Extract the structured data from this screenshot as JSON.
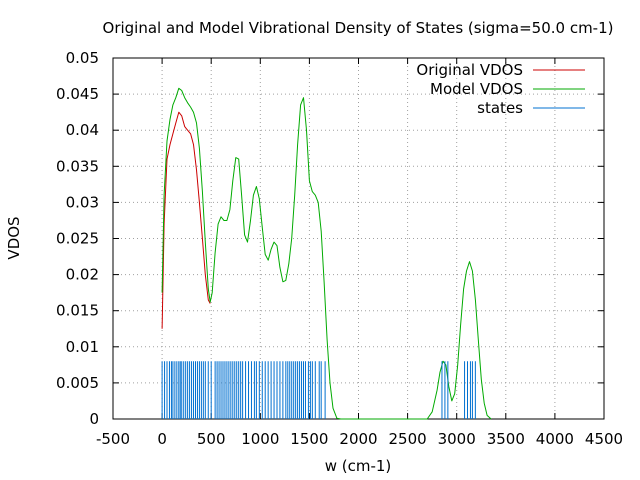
{
  "chart_data": {
    "type": "line",
    "title": "Original and Model Vibrational Density of States (sigma=50.0 cm-1)",
    "xlabel": "w (cm-1)",
    "ylabel": "VDOS",
    "xlim": [
      -500,
      4500
    ],
    "ylim": [
      0,
      0.05
    ],
    "x_ticks": [
      -500,
      0,
      500,
      1000,
      1500,
      2000,
      2500,
      3000,
      3500,
      4000,
      4500
    ],
    "x_tick_labels": [
      "-500",
      "0",
      "500",
      "1000",
      "1500",
      "2000",
      "2500",
      "3000",
      "3500",
      "4000",
      "4500"
    ],
    "y_ticks": [
      0,
      0.005,
      0.01,
      0.015,
      0.02,
      0.025,
      0.03,
      0.035,
      0.04,
      0.045,
      0.05
    ],
    "y_tick_labels": [
      "0",
      "0.005",
      "0.01",
      "0.015",
      "0.02",
      "0.025",
      "0.03",
      "0.035",
      "0.04",
      "0.045",
      "0.05"
    ],
    "grid": true,
    "legend_position": "top-right",
    "series": [
      {
        "name": "Original VDOS",
        "color": "#cc0000",
        "x": [
          0,
          20,
          50,
          80,
          110,
          140,
          170,
          200,
          230,
          260,
          290,
          320,
          350,
          380,
          410,
          440,
          470,
          490
        ],
        "y": [
          0.0125,
          0.027,
          0.036,
          0.038,
          0.0395,
          0.041,
          0.0425,
          0.042,
          0.0405,
          0.04,
          0.0395,
          0.038,
          0.0345,
          0.03,
          0.025,
          0.02,
          0.0165,
          0.016
        ]
      },
      {
        "name": "Model VDOS",
        "color": "#00aa00",
        "x": [
          0,
          20,
          50,
          80,
          110,
          140,
          170,
          200,
          230,
          260,
          290,
          320,
          350,
          380,
          410,
          440,
          470,
          490,
          510,
          540,
          570,
          600,
          630,
          660,
          690,
          720,
          750,
          780,
          810,
          840,
          870,
          900,
          930,
          960,
          990,
          1020,
          1050,
          1080,
          1110,
          1140,
          1170,
          1200,
          1230,
          1260,
          1290,
          1320,
          1350,
          1380,
          1410,
          1440,
          1470,
          1500,
          1530,
          1560,
          1590,
          1620,
          1650,
          1680,
          1710,
          1740,
          1780,
          1820,
          2700,
          2750,
          2800,
          2830,
          2860,
          2890,
          2920,
          2950,
          2980,
          3010,
          3040,
          3070,
          3100,
          3130,
          3160,
          3190,
          3220,
          3250,
          3280,
          3310,
          3350
        ],
        "y": [
          0.0175,
          0.031,
          0.0385,
          0.0415,
          0.0435,
          0.0445,
          0.0458,
          0.0455,
          0.0445,
          0.0438,
          0.0432,
          0.0425,
          0.041,
          0.0375,
          0.0315,
          0.0245,
          0.018,
          0.0162,
          0.0175,
          0.023,
          0.027,
          0.028,
          0.0275,
          0.0275,
          0.029,
          0.033,
          0.0362,
          0.036,
          0.031,
          0.0255,
          0.0245,
          0.0275,
          0.031,
          0.0322,
          0.0305,
          0.0265,
          0.0228,
          0.022,
          0.0235,
          0.0245,
          0.024,
          0.021,
          0.019,
          0.0192,
          0.0215,
          0.025,
          0.031,
          0.038,
          0.0435,
          0.0445,
          0.04,
          0.033,
          0.0315,
          0.031,
          0.03,
          0.026,
          0.019,
          0.011,
          0.005,
          0.0015,
          0.0001,
          0,
          0,
          0.001,
          0.004,
          0.0065,
          0.008,
          0.0075,
          0.0045,
          0.0025,
          0.0035,
          0.0075,
          0.013,
          0.018,
          0.0205,
          0.0218,
          0.0205,
          0.0165,
          0.011,
          0.0055,
          0.0022,
          0.0005,
          0
        ]
      },
      {
        "name": "states",
        "color": "#0070d0",
        "type": "impulse",
        "height": 0.008,
        "x": [
          0,
          25,
          50,
          75,
          95,
          110,
          130,
          150,
          170,
          185,
          200,
          220,
          240,
          260,
          280,
          300,
          320,
          340,
          360,
          380,
          400,
          420,
          440,
          470,
          500,
          540,
          560,
          580,
          600,
          620,
          640,
          660,
          680,
          700,
          720,
          740,
          760,
          780,
          800,
          820,
          850,
          880,
          910,
          940,
          960,
          990,
          1020,
          1050,
          1080,
          1110,
          1140,
          1170,
          1200,
          1230,
          1260,
          1280,
          1300,
          1320,
          1340,
          1360,
          1380,
          1400,
          1420,
          1440,
          1460,
          1490,
          1510,
          1530,
          1560,
          1600,
          1620,
          1660,
          2850,
          2880,
          2910,
          3080,
          3110,
          3140,
          3160,
          3190
        ]
      }
    ]
  }
}
